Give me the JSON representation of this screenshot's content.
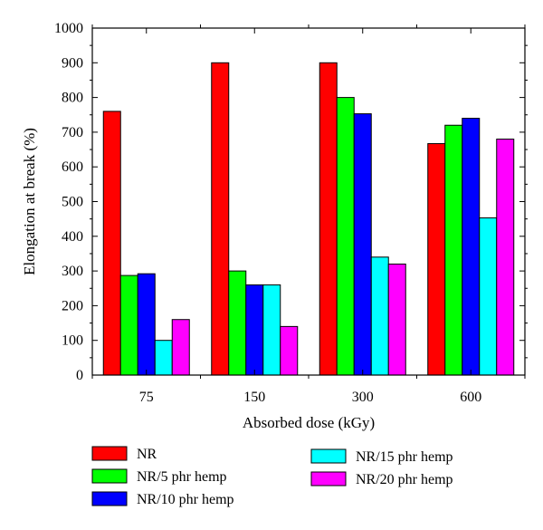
{
  "chart_data": {
    "type": "bar",
    "xlabel": "Absorbed dose (kGy)",
    "ylabel": "Elongation at break (%)",
    "ylim": [
      0,
      1000
    ],
    "yticks": [
      0,
      100,
      200,
      300,
      400,
      500,
      600,
      700,
      800,
      900,
      1000
    ],
    "categories": [
      "75",
      "150",
      "300",
      "600"
    ],
    "grid": false,
    "legend_position": "bottom",
    "series": [
      {
        "name": "NR",
        "color": "#ff0000",
        "values": [
          760,
          900,
          900,
          667
        ]
      },
      {
        "name": "NR/5 phr hemp",
        "color": "#00ff00",
        "values": [
          287,
          300,
          800,
          720
        ]
      },
      {
        "name": "NR/10 phr hemp",
        "color": "#0000ff",
        "values": [
          292,
          260,
          753,
          740
        ]
      },
      {
        "name": "NR/15 phr hemp",
        "color": "#00ffff",
        "values": [
          100,
          260,
          340,
          453
        ]
      },
      {
        "name": "NR/20 phr hemp",
        "color": "#ff00ff",
        "values": [
          160,
          140,
          320,
          680
        ]
      }
    ]
  }
}
